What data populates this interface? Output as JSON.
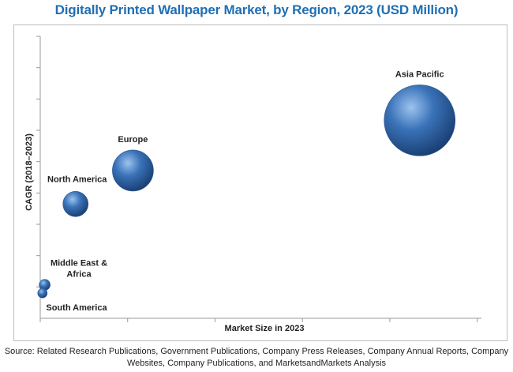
{
  "title": "Digitally Printed Wallpaper Market, by Region, 2023 (USD Million)",
  "source_lines": [
    "Source: Related Research Publications, Government Publications, Company Press Releases, Company Annual Reports, Company",
    "Websites, Company Publications, and MarketsandMarkets Analysis"
  ],
  "colors": {
    "title": "#1f6fb3",
    "bubble": "#3a72b8",
    "bubble_dark": "#1a3f73",
    "bubble_light": "#9cc3ef"
  },
  "chart_data": {
    "type": "scatter",
    "subtype": "bubble",
    "title": "Digitally Printed Wallpaper Market, by Region, 2023 (USD Million)",
    "xlabel": "Market Size in 2023",
    "ylabel": "CAGR (2018–2023)",
    "x_tick_count": 5,
    "y_tick_count": 9,
    "xlim": [
      0,
      10
    ],
    "ylim": [
      0,
      10
    ],
    "grid": false,
    "legend": "none",
    "note": "Axes carry no printed tick values; values are relative positions on the unlabeled axes.",
    "series": [
      {
        "points": [
          {
            "label": "Asia Pacific",
            "x": 8.6,
            "y": 7.1,
            "size": 45
          },
          {
            "label": "Europe",
            "x": 2.1,
            "y": 5.3,
            "size": 26
          },
          {
            "label": "North America",
            "x": 0.8,
            "y": 4.1,
            "size": 16
          },
          {
            "label": "Middle East & Africa",
            "x": 0.1,
            "y": 1.2,
            "size": 7
          },
          {
            "label": "South America",
            "x": 0.05,
            "y": 0.9,
            "size": 6
          }
        ]
      }
    ]
  }
}
